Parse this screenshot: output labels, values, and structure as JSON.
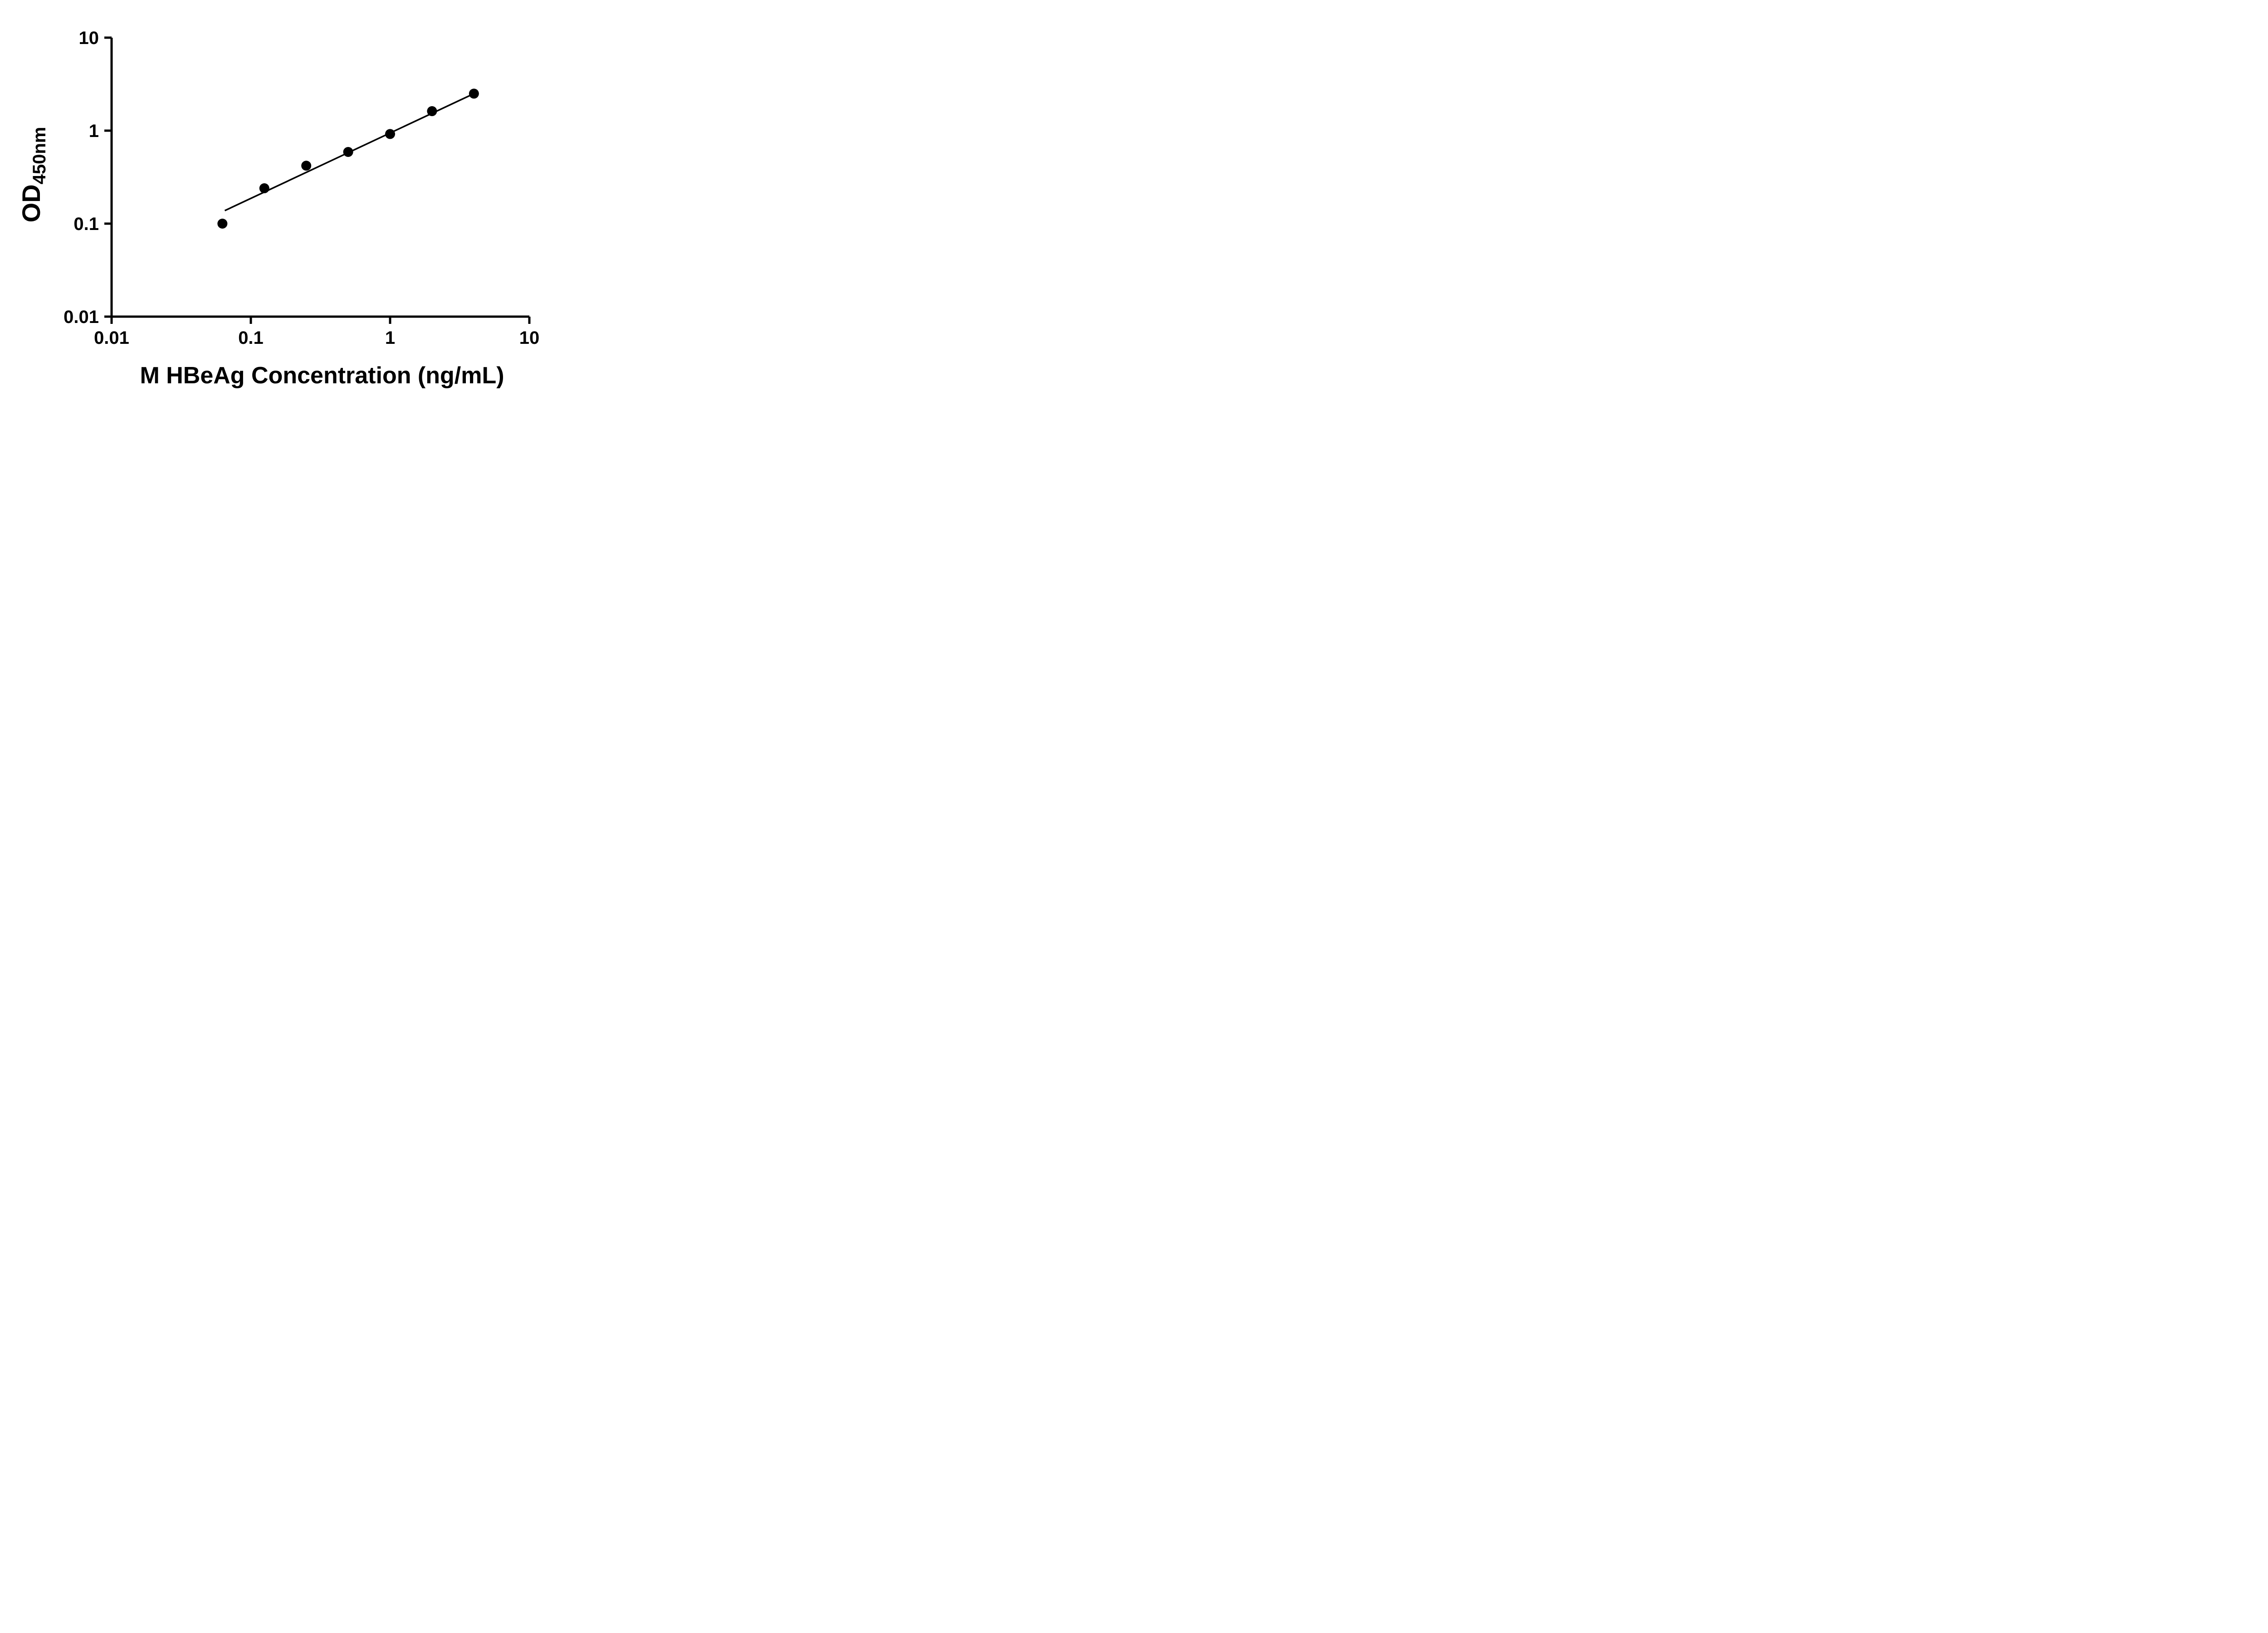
{
  "chart_data": {
    "type": "scatter",
    "title": "",
    "xlabel": "M HBeAg Concentration (ng/mL)",
    "ylabel_main": "OD",
    "ylabel_sub": "450nm",
    "x_scale": "log",
    "y_scale": "log",
    "xlim": [
      0.01,
      10
    ],
    "ylim": [
      0.01,
      10
    ],
    "grid": false,
    "legend": false,
    "x_ticks": [
      {
        "value": 0.01,
        "label": "0.01"
      },
      {
        "value": 0.1,
        "label": "0.1"
      },
      {
        "value": 1,
        "label": "1"
      },
      {
        "value": 10,
        "label": "10"
      }
    ],
    "y_ticks": [
      {
        "value": 0.01,
        "label": "0.01"
      },
      {
        "value": 0.1,
        "label": "0.1"
      },
      {
        "value": 1,
        "label": "1"
      },
      {
        "value": 10,
        "label": "10"
      }
    ],
    "points": [
      {
        "x": 0.0625,
        "y": 0.1
      },
      {
        "x": 0.125,
        "y": 0.24
      },
      {
        "x": 0.25,
        "y": 0.42
      },
      {
        "x": 0.5,
        "y": 0.59
      },
      {
        "x": 1,
        "y": 0.92
      },
      {
        "x": 2,
        "y": 1.62
      },
      {
        "x": 4,
        "y": 2.5
      }
    ],
    "trendline": {
      "x1": 0.065,
      "y1": 0.138,
      "x2": 4.0,
      "y2": 2.5
    },
    "marker_color": "#000000",
    "line_color": "#000000",
    "axis_color": "#000000",
    "background": "#ffffff"
  }
}
